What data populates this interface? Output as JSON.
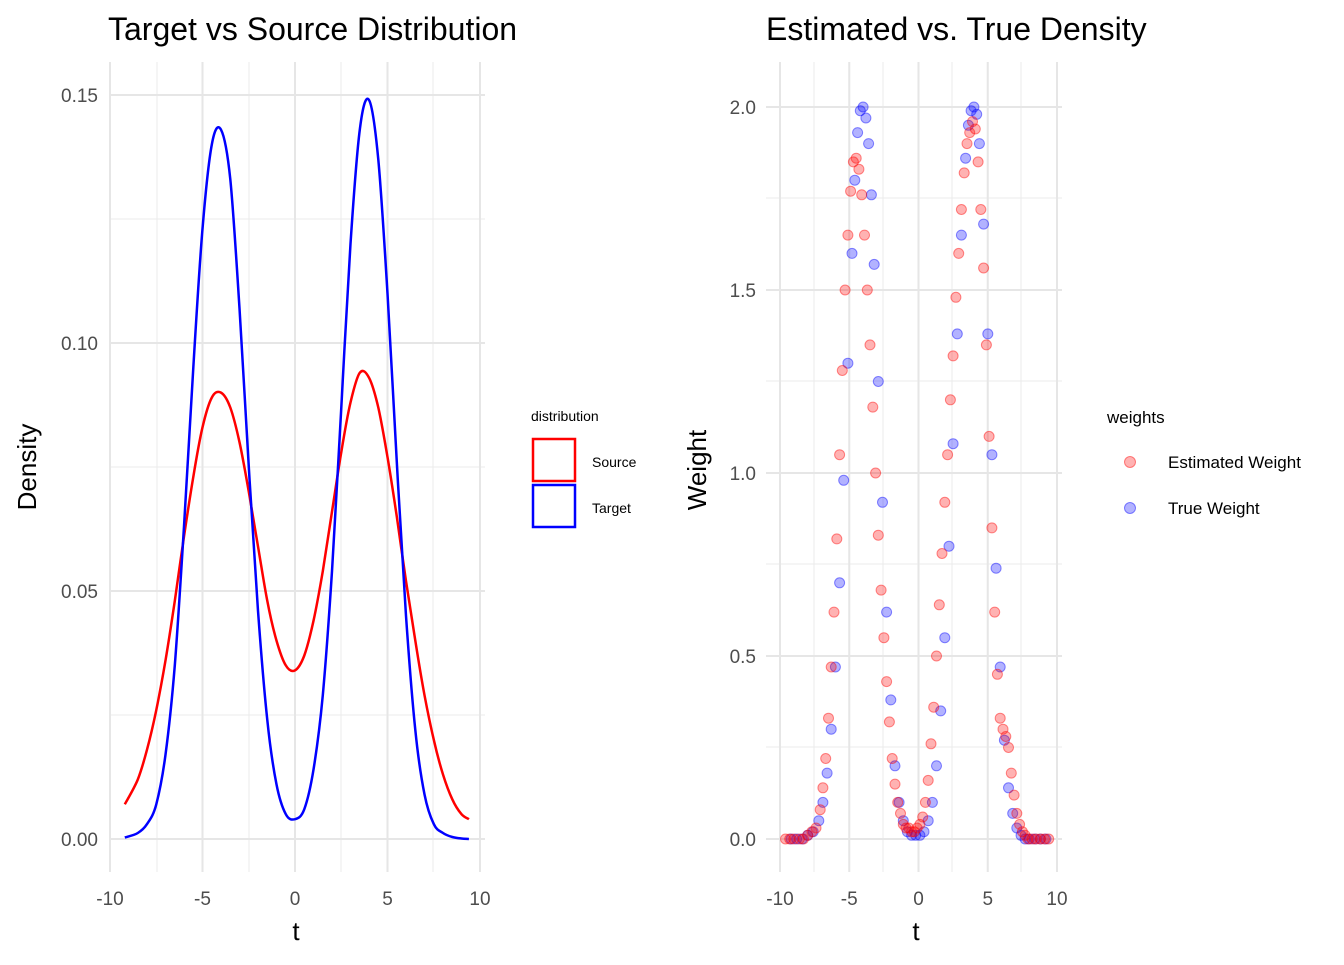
{
  "chart_data": [
    {
      "type": "line",
      "title": "Target vs Source Distribution",
      "xlabel": "t",
      "ylabel": "Density",
      "xlim": [
        -10,
        10
      ],
      "ylim": [
        0,
        0.15
      ],
      "x_ticks": [
        "-10",
        "-5",
        "0",
        "5",
        "10"
      ],
      "y_ticks": [
        "0.00",
        "0.05",
        "0.10",
        "0.15"
      ],
      "grid": true,
      "legend": {
        "title": "distribution",
        "position": "right",
        "entries": [
          "Source",
          "Target"
        ]
      },
      "series": [
        {
          "name": "Source",
          "color": "#ff0000",
          "x": [
            -9.2,
            -8.5,
            -8.0,
            -7.5,
            -7.0,
            -6.5,
            -6.0,
            -5.5,
            -5.0,
            -4.5,
            -4.0,
            -3.5,
            -3.0,
            -2.5,
            -2.0,
            -1.5,
            -1.0,
            -0.5,
            0.0,
            0.5,
            1.0,
            1.5,
            2.0,
            2.5,
            3.0,
            3.5,
            4.0,
            4.5,
            5.0,
            5.5,
            6.0,
            6.5,
            7.0,
            7.5,
            8.0,
            8.5,
            9.0,
            9.4
          ],
          "y": [
            0.007,
            0.012,
            0.018,
            0.026,
            0.036,
            0.048,
            0.061,
            0.073,
            0.083,
            0.089,
            0.09,
            0.087,
            0.08,
            0.07,
            0.059,
            0.048,
            0.04,
            0.035,
            0.034,
            0.037,
            0.044,
            0.054,
            0.066,
            0.078,
            0.088,
            0.094,
            0.093,
            0.087,
            0.077,
            0.065,
            0.052,
            0.04,
            0.029,
            0.02,
            0.013,
            0.008,
            0.005,
            0.004
          ]
        },
        {
          "name": "Target",
          "color": "#0000ff",
          "x": [
            -9.2,
            -8.5,
            -8.0,
            -7.5,
            -7.0,
            -6.5,
            -6.0,
            -5.5,
            -5.0,
            -4.5,
            -4.0,
            -3.5,
            -3.0,
            -2.5,
            -2.0,
            -1.5,
            -1.0,
            -0.5,
            0.0,
            0.5,
            1.0,
            1.5,
            2.0,
            2.5,
            3.0,
            3.5,
            4.0,
            4.5,
            5.0,
            5.5,
            6.0,
            6.5,
            7.0,
            7.5,
            8.0,
            8.5,
            9.0,
            9.4
          ],
          "y": [
            0.0003,
            0.0012,
            0.003,
            0.007,
            0.017,
            0.035,
            0.063,
            0.095,
            0.123,
            0.14,
            0.143,
            0.133,
            0.107,
            0.075,
            0.046,
            0.024,
            0.011,
            0.005,
            0.004,
            0.006,
            0.014,
            0.029,
            0.054,
            0.087,
            0.12,
            0.143,
            0.149,
            0.137,
            0.11,
            0.076,
            0.045,
            0.022,
            0.009,
            0.003,
            0.0012,
            0.0004,
            0.0001,
            0.0
          ]
        }
      ]
    },
    {
      "type": "scatter",
      "title": "Estimated vs. True Density",
      "xlabel": "t",
      "ylabel": "Weight",
      "xlim": [
        -10,
        10
      ],
      "ylim": [
        0,
        2.0
      ],
      "x_ticks": [
        "-10",
        "-5",
        "0",
        "5",
        "10"
      ],
      "y_ticks": [
        "0.0",
        "0.5",
        "1.0",
        "1.5",
        "2.0"
      ],
      "grid": true,
      "legend": {
        "title": "weights",
        "position": "right",
        "entries": [
          "Estimated Weight",
          "True Weight"
        ]
      },
      "series": [
        {
          "name": "Estimated Weight",
          "color": "#ff0000",
          "x": [
            -9.6,
            -9.3,
            -9.0,
            -8.6,
            -8.3,
            -8.0,
            -7.7,
            -7.4,
            -7.1,
            -6.9,
            -6.7,
            -6.5,
            -6.3,
            -6.1,
            -5.9,
            -5.7,
            -5.5,
            -5.3,
            -5.1,
            -4.9,
            -4.7,
            -4.5,
            -4.3,
            -4.1,
            -3.9,
            -3.7,
            -3.5,
            -3.3,
            -3.1,
            -2.9,
            -2.7,
            -2.5,
            -2.3,
            -2.1,
            -1.9,
            -1.7,
            -1.5,
            -1.3,
            -1.1,
            -0.9,
            -0.7,
            -0.5,
            -0.3,
            -0.1,
            0.1,
            0.3,
            0.5,
            0.7,
            0.9,
            1.1,
            1.3,
            1.5,
            1.7,
            1.9,
            2.1,
            2.3,
            2.5,
            2.7,
            2.9,
            3.1,
            3.3,
            3.5,
            3.7,
            3.9,
            4.1,
            4.3,
            4.5,
            4.7,
            4.9,
            5.1,
            5.3,
            5.5,
            5.7,
            5.9,
            6.1,
            6.3,
            6.5,
            6.7,
            6.9,
            7.1,
            7.3,
            7.5,
            7.7,
            7.9,
            8.2,
            8.5,
            8.8,
            9.1,
            9.4
          ],
          "y": [
            0.0,
            0.0,
            0.0,
            0.0,
            0.0,
            0.01,
            0.02,
            0.03,
            0.08,
            0.14,
            0.22,
            0.33,
            0.47,
            0.62,
            0.82,
            1.05,
            1.28,
            1.5,
            1.65,
            1.77,
            1.85,
            1.86,
            1.83,
            1.76,
            1.65,
            1.5,
            1.35,
            1.18,
            1.0,
            0.83,
            0.68,
            0.55,
            0.43,
            0.32,
            0.22,
            0.15,
            0.1,
            0.07,
            0.04,
            0.03,
            0.03,
            0.02,
            0.02,
            0.03,
            0.04,
            0.06,
            0.1,
            0.16,
            0.26,
            0.36,
            0.5,
            0.64,
            0.78,
            0.92,
            1.05,
            1.2,
            1.32,
            1.48,
            1.6,
            1.72,
            1.82,
            1.9,
            1.93,
            1.96,
            1.94,
            1.85,
            1.72,
            1.56,
            1.35,
            1.1,
            0.85,
            0.62,
            0.45,
            0.33,
            0.3,
            0.28,
            0.25,
            0.18,
            0.12,
            0.07,
            0.04,
            0.02,
            0.01,
            0.0,
            0.0,
            0.0,
            0.0,
            0.0,
            0.0
          ]
        },
        {
          "name": "True Weight",
          "color": "#0000ff",
          "x": [
            -9.2,
            -8.8,
            -8.4,
            -8.0,
            -7.6,
            -7.2,
            -6.9,
            -6.6,
            -6.3,
            -6.0,
            -5.7,
            -5.4,
            -5.1,
            -4.8,
            -4.6,
            -4.4,
            -4.2,
            -4.0,
            -3.8,
            -3.6,
            -3.4,
            -3.2,
            -2.9,
            -2.6,
            -2.3,
            -2.0,
            -1.7,
            -1.4,
            -1.1,
            -0.8,
            -0.5,
            -0.2,
            0.1,
            0.4,
            0.7,
            1.0,
            1.3,
            1.6,
            1.9,
            2.2,
            2.5,
            2.8,
            3.1,
            3.4,
            3.6,
            3.8,
            4.0,
            4.2,
            4.4,
            4.7,
            5.0,
            5.3,
            5.6,
            5.9,
            6.2,
            6.5,
            6.8,
            7.1,
            7.4,
            7.7,
            8.0,
            8.4,
            8.8,
            9.2
          ],
          "y": [
            0.0,
            0.0,
            0.0,
            0.01,
            0.02,
            0.05,
            0.1,
            0.18,
            0.3,
            0.47,
            0.7,
            0.98,
            1.3,
            1.6,
            1.8,
            1.93,
            1.99,
            2.0,
            1.97,
            1.9,
            1.76,
            1.57,
            1.25,
            0.92,
            0.62,
            0.38,
            0.2,
            0.1,
            0.05,
            0.02,
            0.01,
            0.01,
            0.01,
            0.02,
            0.05,
            0.1,
            0.2,
            0.35,
            0.55,
            0.8,
            1.08,
            1.38,
            1.65,
            1.86,
            1.95,
            1.99,
            2.0,
            1.98,
            1.9,
            1.68,
            1.38,
            1.05,
            0.74,
            0.47,
            0.27,
            0.14,
            0.07,
            0.03,
            0.01,
            0.0,
            0.0,
            0.0,
            0.0,
            0.0
          ]
        }
      ]
    }
  ]
}
